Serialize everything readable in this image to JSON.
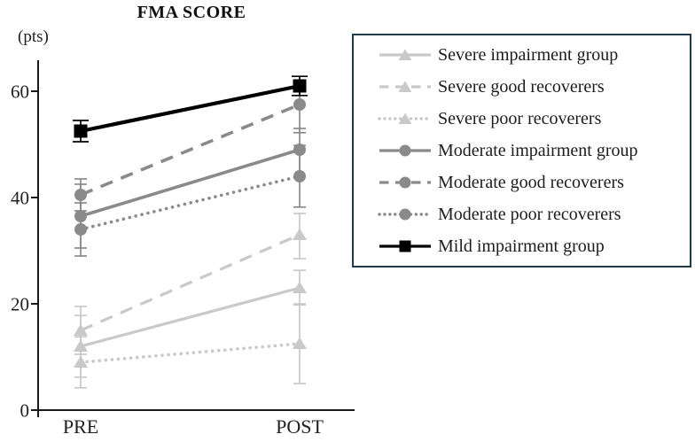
{
  "chart_data": {
    "type": "line",
    "title": "FMA SCORE",
    "ylabel": "(pts)",
    "categories": [
      "PRE",
      "POST"
    ],
    "y_ticks": [
      0,
      20,
      40,
      60
    ],
    "ylim": [
      0,
      66
    ],
    "grid": false,
    "axis_color": "#1a1a1a",
    "legend": {
      "position": "upper right",
      "border_color": "#1b3c4e"
    },
    "series": [
      {
        "name": "Severe impairment group",
        "color": "#c9c9c9",
        "line_style": "solid",
        "marker": "triangle",
        "values": [
          12,
          23
        ],
        "error_low": [
          6.2,
          19.8
        ],
        "error_high": [
          17.8,
          26.3
        ]
      },
      {
        "name": "Severe good recoverers",
        "color": "#c9c9c9",
        "line_style": "dashed",
        "marker": "triangle",
        "values": [
          15,
          33
        ],
        "error_low": [
          10.5,
          28.5
        ],
        "error_high": [
          19.5,
          37
        ]
      },
      {
        "name": "Severe poor recoverers",
        "color": "#c9c9c9",
        "line_style": "dotted",
        "marker": "triangle",
        "values": [
          9,
          12.5
        ],
        "error_low": [
          4.2,
          5
        ],
        "error_high": [
          13.8,
          20
        ]
      },
      {
        "name": "Moderate impairment group",
        "color": "#8a8a8a",
        "line_style": "solid",
        "marker": "circle",
        "values": [
          36.5,
          49
        ],
        "error_low": [
          30.5,
          44
        ],
        "error_high": [
          42.5,
          53
        ]
      },
      {
        "name": "Moderate good recoverers",
        "color": "#8a8a8a",
        "line_style": "dashed",
        "marker": "circle",
        "values": [
          40.5,
          57.5
        ],
        "error_low": [
          37.5,
          52.2
        ],
        "error_high": [
          43.5,
          61.5
        ]
      },
      {
        "name": "Moderate poor recoverers",
        "color": "#8a8a8a",
        "line_style": "dotted",
        "marker": "circle",
        "values": [
          34,
          44
        ],
        "error_low": [
          29,
          38.2
        ],
        "error_high": [
          39,
          49.8
        ]
      },
      {
        "name": "Mild impairment group",
        "color": "#000000",
        "line_style": "solid",
        "marker": "square",
        "values": [
          52.5,
          61
        ],
        "error_low": [
          50.5,
          59.2
        ],
        "error_high": [
          54.5,
          62.8
        ]
      }
    ]
  }
}
